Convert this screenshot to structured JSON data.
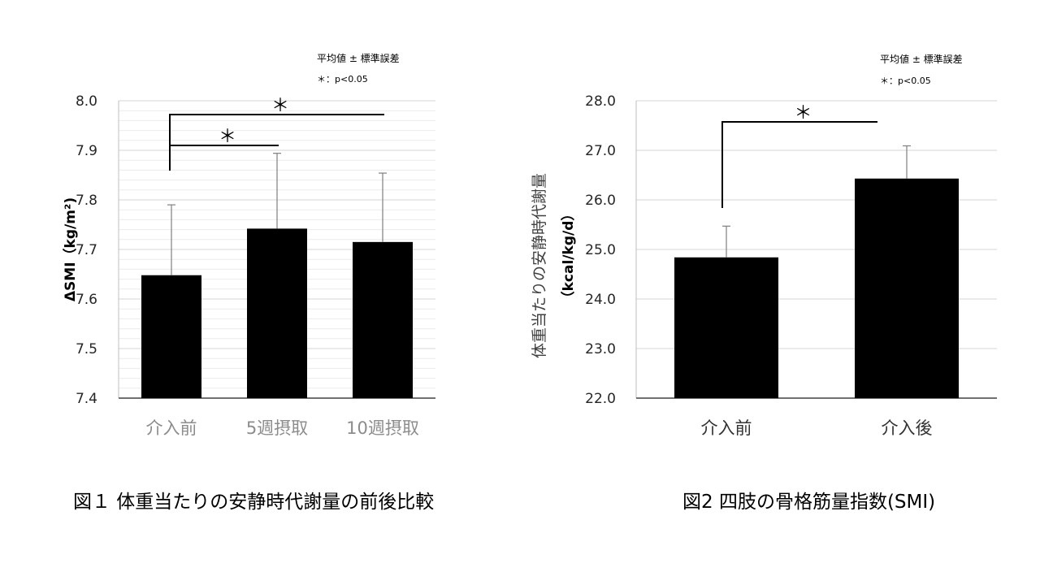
{
  "chart_data": [
    {
      "type": "bar",
      "categories": [
        "介入前",
        "5週摂取",
        "10週摂取"
      ],
      "values": [
        7.648,
        7.742,
        7.715
      ],
      "errors": [
        0.142,
        0.152,
        0.139
      ],
      "ylabel": "ΔSMI（kg/m²)",
      "ylim": [
        7.4,
        8.0
      ],
      "ytick_step": 0.1,
      "yticks": [
        "7.4",
        "7.5",
        "7.6",
        "7.7",
        "7.8",
        "7.9",
        "8.0"
      ],
      "grid": true,
      "minor_grid": true,
      "notes": [
        "平均値 ± 標準誤差",
        "＊：p<0.05"
      ],
      "significance": [
        {
          "from": 0,
          "to": 1,
          "label": "＊"
        },
        {
          "from": 0,
          "to": 2,
          "label": "＊"
        }
      ],
      "caption": "図１ 体重当たりの安静時代謝量の前後比較",
      "bar_color": "#000000",
      "tick_label_color": "#8c8c8c"
    },
    {
      "type": "bar",
      "categories": [
        "介入前",
        "介入後"
      ],
      "values": [
        24.84,
        26.43
      ],
      "errors": [
        0.63,
        0.66
      ],
      "ylabel_line1": "体重当たりの安静時代謝量",
      "ylabel_line2": "（kcal/kg/d）",
      "ylim": [
        22.0,
        28.0
      ],
      "ytick_step": 1.0,
      "yticks": [
        "22.0",
        "23.0",
        "24.0",
        "25.0",
        "26.0",
        "27.0",
        "28.0"
      ],
      "grid": true,
      "minor_grid": false,
      "notes": [
        "平均値 ± 標準誤差",
        "＊：p<0.05"
      ],
      "significance": [
        {
          "from": 0,
          "to": 1,
          "label": "＊"
        }
      ],
      "caption": "図2 四肢の骨格筋量指数(SMI)",
      "bar_color": "#000000",
      "tick_label_color": "#333333"
    }
  ]
}
